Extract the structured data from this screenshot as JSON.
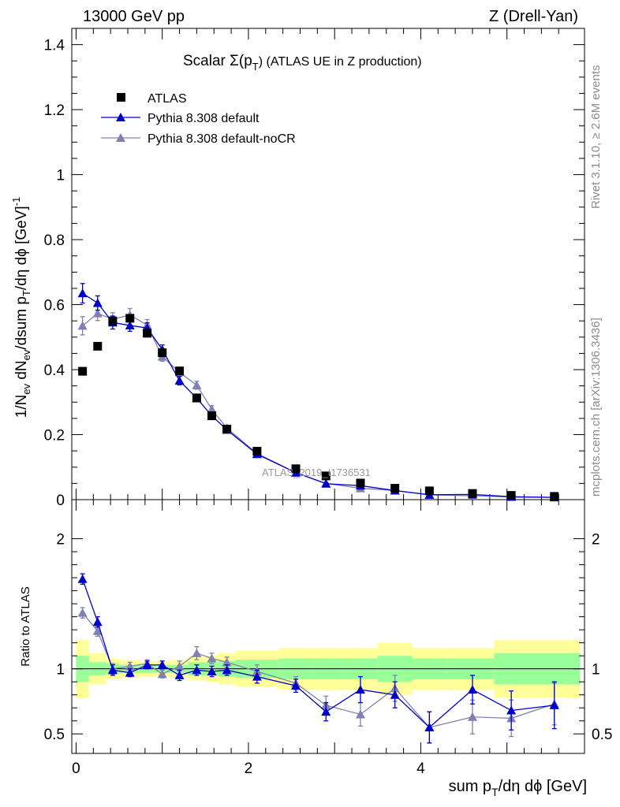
{
  "header": {
    "left": "13000 GeV pp",
    "right": "Z (Drell-Yan)"
  },
  "side_labels": {
    "rivet": "Rivet 3.1.10, ≥ 2.6M events",
    "mcplots": "mcplots.cern.ch [arXiv:1306.3436]"
  },
  "colors": {
    "data": "#000000",
    "default": "#0000cc",
    "noCR": "#8080b3",
    "band_inner": "#99ff99",
    "band_outer": "#ffff99"
  },
  "chart_data": [
    {
      "type": "scatter",
      "title": "Scalar Σ(pT) (ATLAS UE in Z production)",
      "title_main": "Scalar Σ(p",
      "title_sub": "T",
      "title_rest": ") (ATLAS UE in Z production)",
      "ylabel": "1/Nev dNev/dsum pT/dη dϕ [GeV]^-1",
      "watermark": "ATLAS_2019_I1736531",
      "xlim": [
        -0.05,
        5.9
      ],
      "ylim": [
        0,
        1.45
      ],
      "yticks": [
        0,
        0.2,
        0.4,
        0.6,
        0.8,
        1,
        1.2,
        1.4
      ],
      "ytick_labels": [
        "0",
        "0.2",
        "0.4",
        "0.6",
        "0.8",
        "1",
        "1.2",
        "1.4"
      ],
      "legend_position": "top-left",
      "series": [
        {
          "name": "ATLAS",
          "marker": "square",
          "x": [
            0.075,
            0.25,
            0.425,
            0.625,
            0.825,
            1.0,
            1.2,
            1.4,
            1.575,
            1.75,
            2.1,
            2.55,
            2.9,
            3.3,
            3.7,
            4.1,
            4.6,
            5.05,
            5.55
          ],
          "y": [
            0.395,
            0.472,
            0.55,
            0.558,
            0.512,
            0.452,
            0.396,
            0.313,
            0.258,
            0.217,
            0.149,
            0.095,
            0.073,
            0.051,
            0.035,
            0.027,
            0.019,
            0.013,
            0.01
          ]
        },
        {
          "name": "Pythia 8.308 default",
          "marker": "triangle",
          "x": [
            0.075,
            0.25,
            0.425,
            0.625,
            0.825,
            1.0,
            1.2,
            1.4,
            1.575,
            1.75,
            2.1,
            2.55,
            2.9,
            3.3,
            3.7,
            4.1,
            4.6,
            5.05,
            5.55
          ],
          "y": [
            0.635,
            0.605,
            0.545,
            0.536,
            0.528,
            0.462,
            0.366,
            0.312,
            0.258,
            0.215,
            0.14,
            0.083,
            0.049,
            0.043,
            0.028,
            0.015,
            0.016,
            0.009,
            0.007
          ],
          "err": [
            0.03,
            0.022,
            0.02,
            0.018,
            0.016,
            0.014,
            0.013,
            0.011,
            0.01,
            0.009,
            0.006,
            0.004,
            0.003,
            0.003,
            0.002,
            0.002,
            0.002,
            0.001,
            0.001
          ]
        },
        {
          "name": "Pythia 8.308 default-noCR",
          "marker": "triangle",
          "x": [
            0.075,
            0.25,
            0.425,
            0.625,
            0.825,
            1.0,
            1.2,
            1.4,
            1.575,
            1.75,
            2.1,
            2.55,
            2.9,
            3.3,
            3.7,
            4.1,
            4.6,
            5.05,
            5.55
          ],
          "y": [
            0.535,
            0.573,
            0.555,
            0.568,
            0.537,
            0.44,
            0.392,
            0.352,
            0.278,
            0.22,
            0.142,
            0.083,
            0.05,
            0.035,
            0.028,
            0.015,
            0.012,
            0.008,
            0.007
          ],
          "err": [
            0.028,
            0.022,
            0.02,
            0.02,
            0.017,
            0.014,
            0.013,
            0.012,
            0.011,
            0.009,
            0.006,
            0.004,
            0.003,
            0.003,
            0.002,
            0.002,
            0.002,
            0.001,
            0.001
          ]
        }
      ]
    },
    {
      "type": "scatter",
      "ylabel": "Ratio to ATLAS",
      "xlabel": "sum pT/dη dϕ [GeV]",
      "xlim": [
        -0.05,
        5.9
      ],
      "ylim": [
        0.35,
        2.3
      ],
      "yticks": [
        0.5,
        1,
        2
      ],
      "ytick_labels": [
        "0.5",
        "1",
        "2"
      ],
      "xticks": [
        0,
        2,
        4
      ],
      "xtick_labels": [
        "0",
        "2",
        "4"
      ],
      "bands": {
        "edges": [
          0,
          0.15,
          0.35,
          0.5,
          0.75,
          0.9,
          1.1,
          1.3,
          1.5,
          1.65,
          1.85,
          2.35,
          2.75,
          3.1,
          3.5,
          3.9,
          4.3,
          4.85,
          5.25,
          5.85
        ],
        "inner_lo": [
          0.9,
          0.95,
          0.96,
          0.97,
          0.97,
          0.97,
          0.97,
          0.95,
          0.95,
          0.94,
          0.93,
          0.92,
          0.92,
          0.92,
          0.9,
          0.92,
          0.92,
          0.88,
          0.88
        ],
        "inner_hi": [
          1.1,
          1.05,
          1.04,
          1.03,
          1.03,
          1.03,
          1.03,
          1.05,
          1.05,
          1.06,
          1.07,
          1.08,
          1.08,
          1.08,
          1.1,
          1.08,
          1.08,
          1.12,
          1.12
        ],
        "outer_lo": [
          0.78,
          0.88,
          0.92,
          0.93,
          0.94,
          0.94,
          0.93,
          0.91,
          0.9,
          0.88,
          0.86,
          0.84,
          0.84,
          0.84,
          0.8,
          0.84,
          0.84,
          0.78,
          0.78
        ],
        "outer_hi": [
          1.22,
          1.12,
          1.08,
          1.07,
          1.06,
          1.06,
          1.07,
          1.09,
          1.1,
          1.12,
          1.14,
          1.16,
          1.16,
          1.16,
          1.2,
          1.16,
          1.16,
          1.22,
          1.22
        ]
      },
      "series": [
        {
          "name": "Pythia 8.308 default",
          "x": [
            0.075,
            0.25,
            0.425,
            0.625,
            0.825,
            1.0,
            1.2,
            1.4,
            1.575,
            1.75,
            2.1,
            2.55,
            2.9,
            3.3,
            3.7,
            4.1,
            4.6,
            5.05,
            5.55
          ],
          "y": [
            1.69,
            1.36,
            0.99,
            0.97,
            1.03,
            1.03,
            0.95,
            0.99,
            0.98,
            0.99,
            0.94,
            0.87,
            0.67,
            0.84,
            0.8,
            0.55,
            0.84,
            0.68,
            0.72
          ],
          "err": [
            0.04,
            0.04,
            0.04,
            0.03,
            0.03,
            0.03,
            0.04,
            0.04,
            0.04,
            0.04,
            0.05,
            0.05,
            0.07,
            0.1,
            0.1,
            0.12,
            0.11,
            0.15,
            0.18
          ]
        },
        {
          "name": "Pythia 8.308 default-noCR",
          "x": [
            0.075,
            0.25,
            0.425,
            0.625,
            0.825,
            1.0,
            1.2,
            1.4,
            1.575,
            1.75,
            2.1,
            2.55,
            2.9,
            3.3,
            3.7,
            4.1,
            4.6,
            5.05,
            5.55
          ],
          "y": [
            1.43,
            1.29,
            1.0,
            1.02,
            1.04,
            0.96,
            1.02,
            1.12,
            1.08,
            1.05,
            0.98,
            0.89,
            0.72,
            0.65,
            0.85,
            0.55,
            0.63,
            0.62,
            0.73
          ],
          "err": [
            0.04,
            0.04,
            0.04,
            0.03,
            0.03,
            0.03,
            0.04,
            0.05,
            0.04,
            0.04,
            0.05,
            0.05,
            0.07,
            0.09,
            0.1,
            0.12,
            0.13,
            0.14,
            0.16
          ]
        }
      ]
    }
  ]
}
